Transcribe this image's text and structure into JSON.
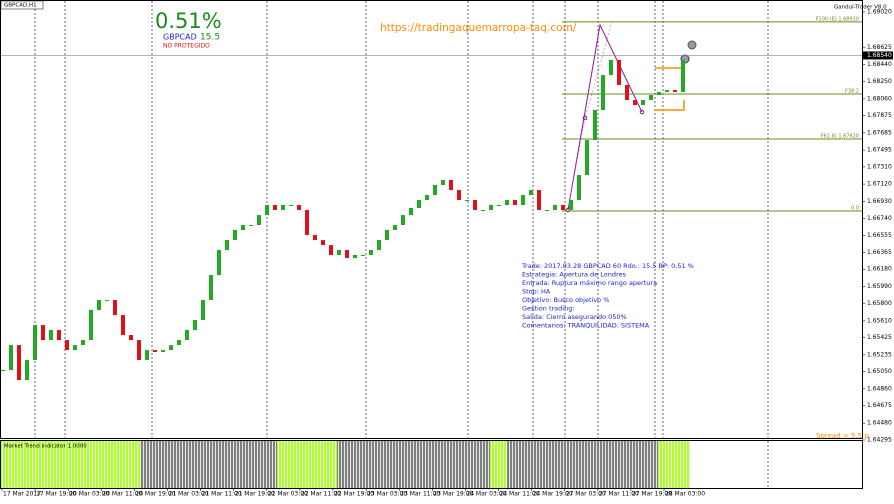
{
  "chart_data": {
    "type": "candlestick",
    "title": "GBPCAD,H1",
    "values": [
      1.65067,
      1.65343,
      1.64957,
      1.65178,
      1.65564,
      1.65398,
      1.65509,
      1.65398,
      1.65288,
      1.65343,
      1.65398,
      1.6573,
      1.6584,
      1.6584,
      1.65674,
      1.65454,
      1.65398,
      1.65178,
      1.65288,
      1.65266,
      1.65288,
      1.65343,
      1.65398,
      1.65509,
      1.65619,
      1.6584,
      1.66116,
      1.66392,
      1.66502,
      1.66613,
      1.66668,
      1.66668,
      1.66778,
      1.66889,
      1.66834,
      1.66889,
      1.66889,
      1.66834,
      1.66558,
      1.66502,
      1.66447,
      1.66337,
      1.66392,
      1.66304,
      1.66337,
      1.66337,
      1.66392,
      1.66502,
      1.66613,
      1.66668,
      1.66778,
      1.66856,
      1.66944,
      1.66999,
      1.6711,
      1.67165,
      1.67054,
      1.66944,
      1.66944,
      1.66834,
      1.66834,
      1.66889,
      1.66889,
      1.66944,
      1.66889,
      1.66999,
      1.67054,
      1.66834,
      1.66834,
      1.66889,
      1.66834,
      1.66944,
      1.6722,
      1.67606,
      1.67938,
      1.68324,
      1.6849,
      1.68214,
      1.68048,
      1.67993,
      1.68048,
      1.68103,
      1.68136,
      1.68158,
      1.68136,
      1.6849
    ],
    "up_color": "#22aa22",
    "down_color": "#e0101a",
    "ylim": [
      1.64295,
      1.6913
    ],
    "yticks": [
      {
        "value": 1.6902,
        "label": "1.69020"
      },
      {
        "value": 1.68625,
        "label": "1.68625"
      },
      {
        "value": 1.6844,
        "label": "1.68440"
      },
      {
        "value": 1.6825,
        "label": "1.68250"
      },
      {
        "value": 1.6806,
        "label": "1.68060"
      },
      {
        "value": 1.67875,
        "label": "1.67875"
      },
      {
        "value": 1.67685,
        "label": "1.67685"
      },
      {
        "value": 1.67495,
        "label": "1.67495"
      },
      {
        "value": 1.6731,
        "label": "1.67310"
      },
      {
        "value": 1.6712,
        "label": "1.67120"
      },
      {
        "value": 1.6693,
        "label": "1.66930"
      },
      {
        "value": 1.6674,
        "label": "1.66740"
      },
      {
        "value": 1.66555,
        "label": "1.66555"
      },
      {
        "value": 1.66365,
        "label": "1.66365"
      },
      {
        "value": 1.6618,
        "label": "1.66180"
      },
      {
        "value": 1.6599,
        "label": "1.65990"
      },
      {
        "value": 1.658,
        "label": "1.65800"
      },
      {
        "value": 1.6561,
        "label": "1.65610"
      },
      {
        "value": 1.65425,
        "label": "1.65425"
      },
      {
        "value": 1.65235,
        "label": "1.65235"
      },
      {
        "value": 1.6505,
        "label": "1.65050"
      },
      {
        "value": 1.6486,
        "label": "1.64860"
      },
      {
        "value": 1.64675,
        "label": "1.64675"
      },
      {
        "value": 1.6448,
        "label": "1.64480"
      },
      {
        "value": 1.64295,
        "label": "1.64295"
      }
    ],
    "current_price": {
      "value": 1.6854,
      "label": "1.68540"
    },
    "x_labels": [
      "17 Mar 2017",
      "17 Mar 19:00",
      "20 Mar 03:00",
      "20 Mar 11:00",
      "20 Mar 19:00",
      "21 Mar 03:00",
      "21 Mar 11:00",
      "21 Mar 19:00",
      "22 Mar 03:00",
      "22 Mar 11:00",
      "22 Mar 19:00",
      "23 Mar 03:00",
      "23 Mar 11:00",
      "23 Mar 19:00",
      "24 Mar 03:00",
      "24 Mar 11:00",
      "24 Mar 19:00",
      "27 Mar 03:00",
      "27 Mar 11:00",
      "27 Mar 19:00",
      "28 Mar 03:00"
    ],
    "fibo": [
      {
        "value": 1.6891,
        "label": "F100.(E) 1.68910"
      },
      {
        "value": 1.68115,
        "label": "F38.2"
      },
      {
        "value": 1.67618,
        "label": "F61.8) 1.67620"
      },
      {
        "value": 1.66823,
        "label": "0.0"
      }
    ],
    "fibo_color": "#6b8e23",
    "percent": "0.51%",
    "symbol": "GBPCAD",
    "result": "15.5",
    "status": "NO PROTEGIDO",
    "url": "https://tradingaquemarropa-taq.com/",
    "expert": "Gandul-Trader V8.0",
    "spread": "Spread = 5.5 p",
    "indicator": "Market Trend Indicator 1.0000",
    "notes": [
      "Trade: 2017.03.28 GBPCAD 60  Rdo.: 15.5  BP: 0.51 %",
      "Estrategia: Apertura de Londres",
      "Entrada: Ruptura máximo rango apertura",
      "Stop: HA",
      "Objetivo: Busco objetivo %",
      "Gestión trading:",
      "Salida: Cierro asegurando 050%",
      "Comentarios: TRANQUILIDAD. SISTEMA"
    ]
  }
}
